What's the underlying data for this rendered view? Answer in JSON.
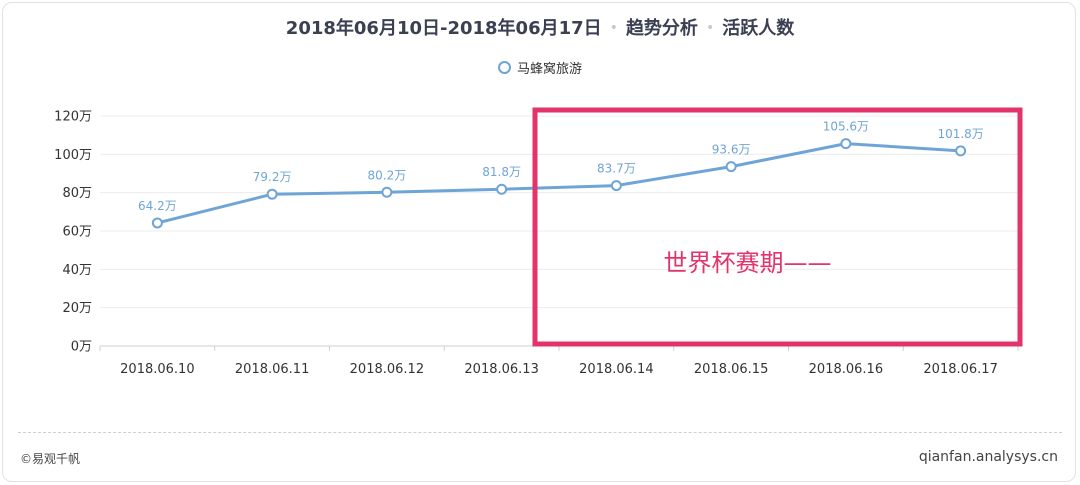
{
  "title": {
    "range": "2018年06月10日-2018年06月17日",
    "section": "趋势分析",
    "metric": "活跃人数",
    "separator": "•"
  },
  "footer": {
    "copyright": "©易观千帆",
    "site": "qianfan.analysys.cn"
  },
  "colors": {
    "series": "#6fa5d6",
    "highlight": "#e2336b",
    "grid": "#ececec"
  },
  "chart_data": {
    "type": "line",
    "categories": [
      "2018.06.10",
      "2018.06.11",
      "2018.06.12",
      "2018.06.13",
      "2018.06.14",
      "2018.06.15",
      "2018.06.16",
      "2018.06.17"
    ],
    "series": [
      {
        "name": "马蜂窝旅游",
        "values": [
          64.2,
          79.2,
          80.2,
          81.8,
          83.7,
          93.6,
          105.6,
          101.8
        ],
        "labels": [
          "64.2万",
          "79.2万",
          "80.2万",
          "81.8万",
          "83.7万",
          "93.6万",
          "105.6万",
          "101.8万"
        ]
      }
    ],
    "y_ticks": [
      0,
      20,
      40,
      60,
      80,
      100,
      120
    ],
    "y_tick_labels": [
      "0万",
      "20万",
      "40万",
      "60万",
      "80万",
      "100万",
      "120万"
    ],
    "ylim": [
      0,
      120
    ],
    "grid": true,
    "legend": "top-center",
    "annotation": {
      "text": "世界杯赛期——",
      "from_category": "2018.06.14",
      "to_category": "2018.06.17"
    }
  }
}
